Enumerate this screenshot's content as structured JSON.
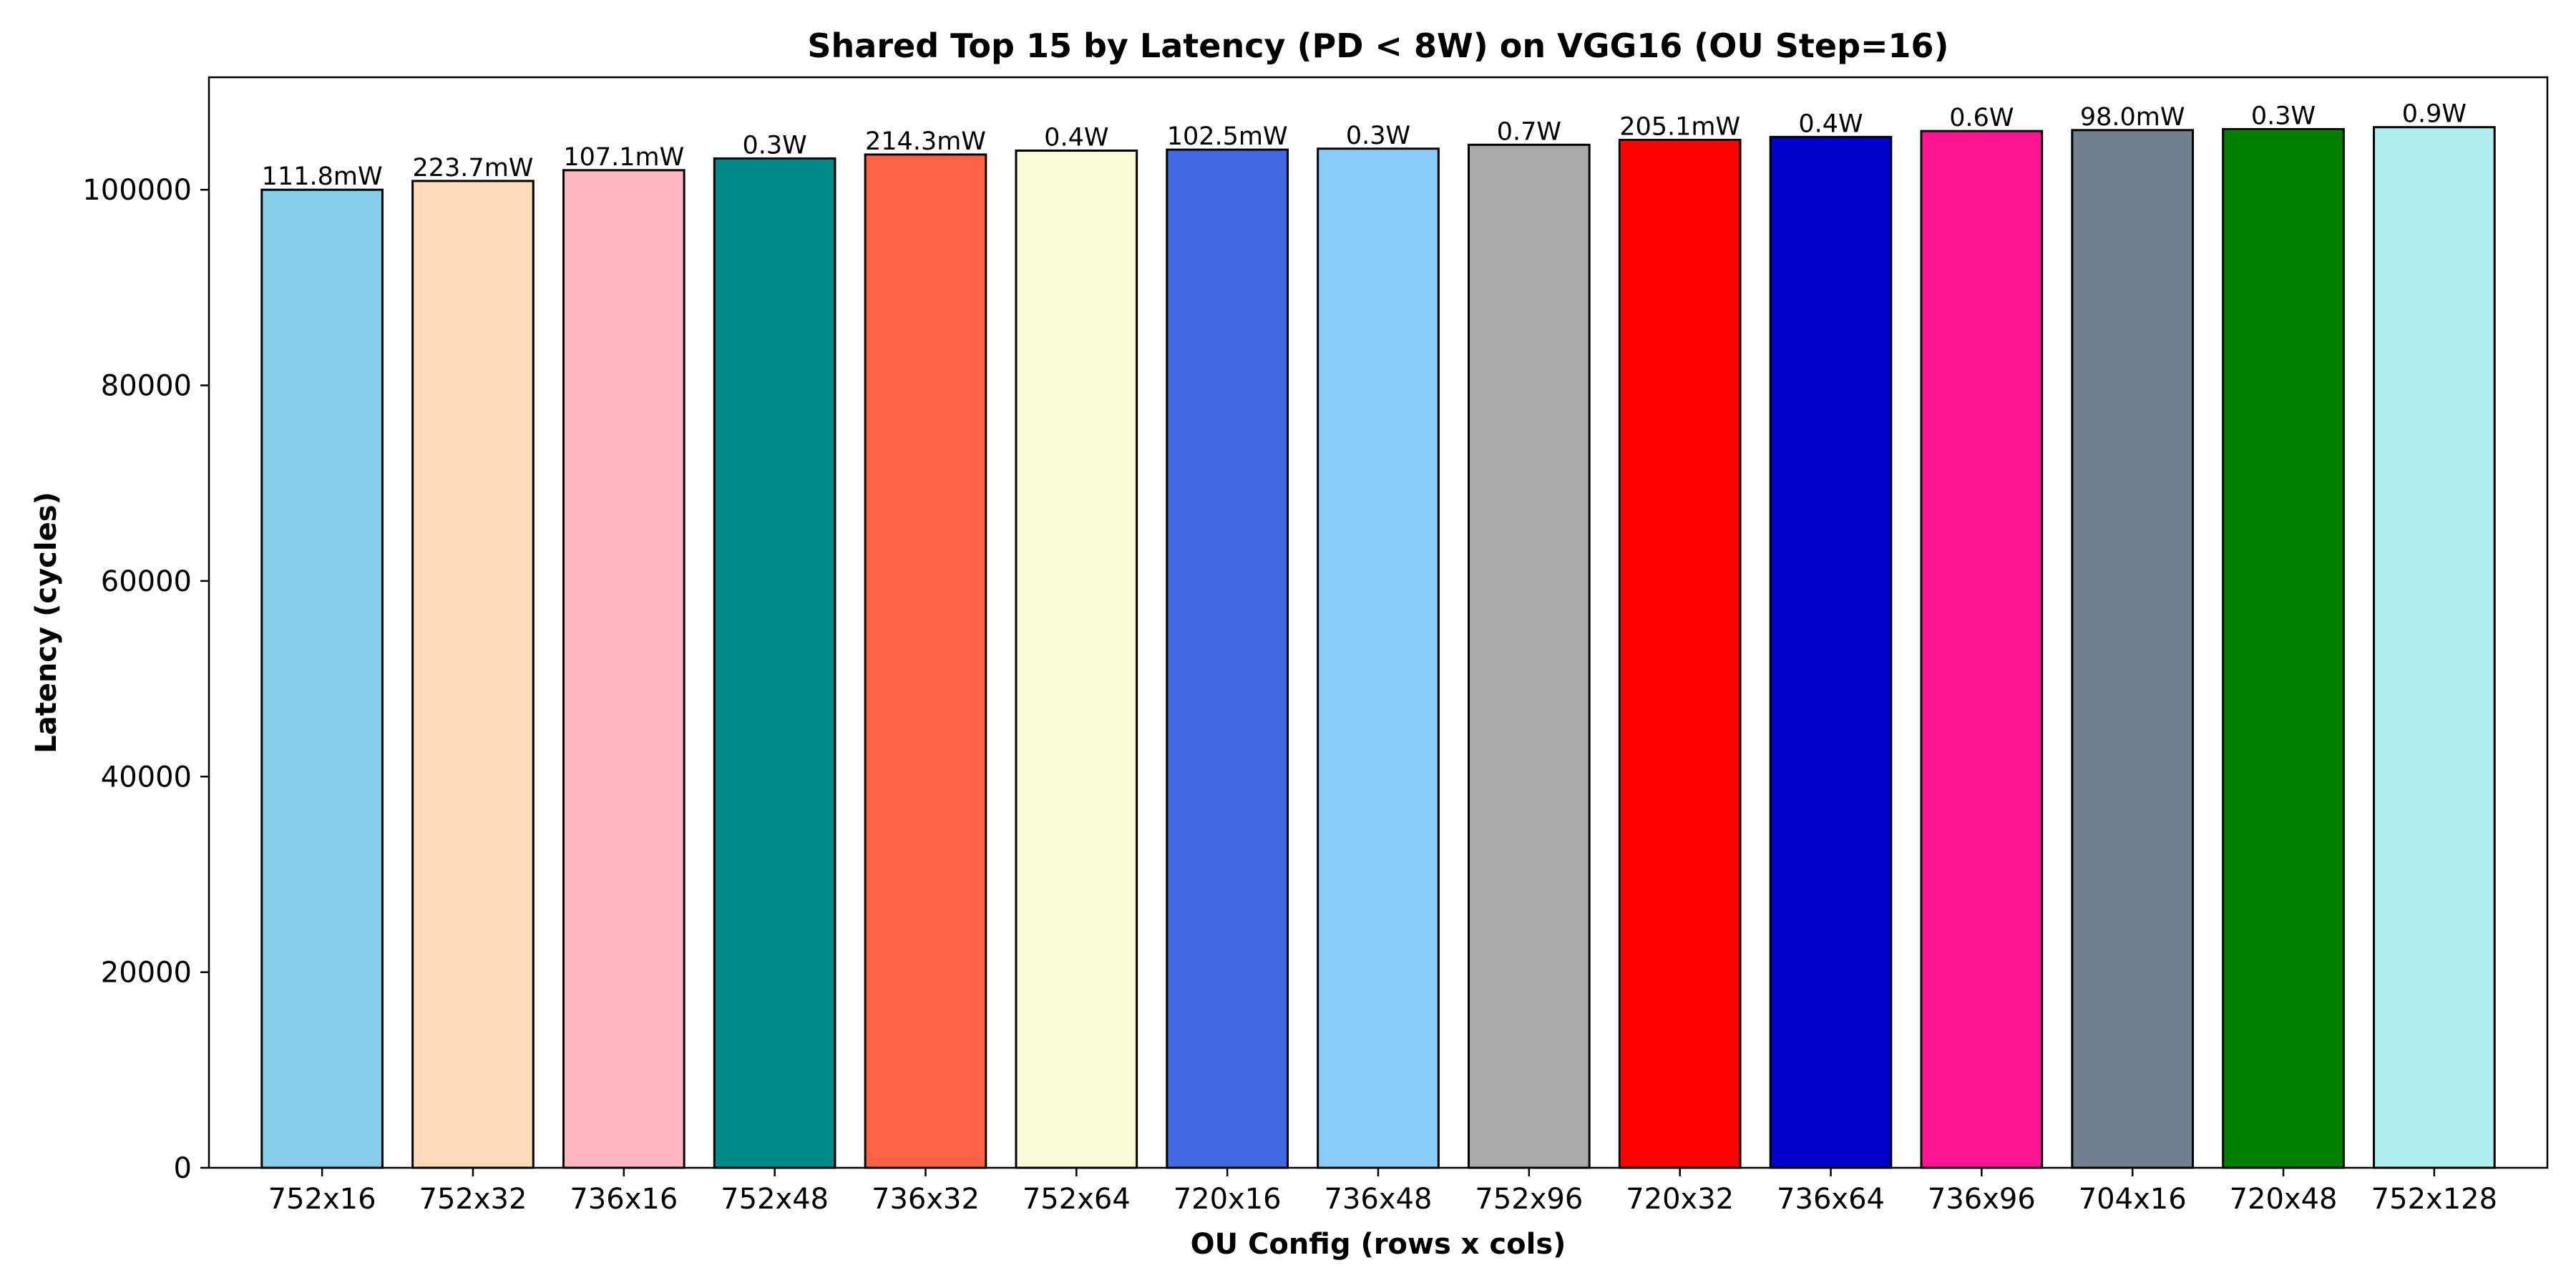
{
  "chart_data": {
    "type": "bar",
    "title": "Shared Top 15 by Latency (PD < 8W) on VGG16 (OU Step=16)",
    "xlabel": "OU Config (rows x cols)",
    "ylabel": "Latency (cycles)",
    "ylim": [
      0,
      111500
    ],
    "yticks": [
      0,
      20000,
      40000,
      60000,
      80000,
      100000
    ],
    "ytick_labels": [
      "0",
      "20000",
      "40000",
      "60000",
      "80000",
      "100000"
    ],
    "grid": false,
    "categories": [
      "752x16",
      "752x32",
      "736x16",
      "752x48",
      "736x32",
      "752x64",
      "720x16",
      "736x48",
      "752x96",
      "720x32",
      "736x64",
      "736x96",
      "704x16",
      "720x48",
      "752x128"
    ],
    "values": [
      100000,
      100900,
      102000,
      103200,
      103600,
      104000,
      104100,
      104200,
      104600,
      105100,
      105400,
      106000,
      106100,
      106200,
      106400
    ],
    "data_labels": [
      "111.8mW",
      "223.7mW",
      "107.1mW",
      "0.3W",
      "214.3mW",
      "0.4W",
      "102.5mW",
      "0.3W",
      "0.7W",
      "205.1mW",
      "0.4W",
      "0.6W",
      "98.0mW",
      "0.3W",
      "0.9W"
    ],
    "colors": [
      "#87CEEB",
      "#FFDAB9",
      "#FFB6C1",
      "#008B8B",
      "#FF6347",
      "#FAFAD2",
      "#4169E1",
      "#87CEFA",
      "#A9A9A9",
      "#FF0000",
      "#0000CD",
      "#FF1493",
      "#708090",
      "#008000",
      "#AFEEEE"
    ],
    "edge_color": "#000000"
  }
}
